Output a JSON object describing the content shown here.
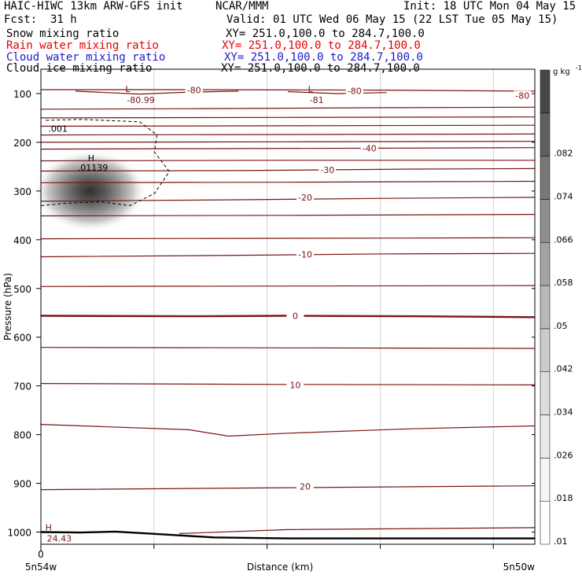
{
  "header": {
    "model": "HAIC-HIWC 13km ARW-GFS init",
    "center": "NCAR/MMM",
    "init": "Init: 18 UTC Mon 04 May 15",
    "fcst_label": "Fcst:",
    "fcst_value": "31 h",
    "valid": "Valid: 01 UTC Wed 06 May 15 (22 LST Tue 05 May 15)"
  },
  "fields": [
    {
      "name": "Snow mixing ratio",
      "xy": "XY= 251.0,100.0 to 284.7,100.0",
      "color": "#000000"
    },
    {
      "name": "Rain water mixing ratio",
      "xy": "XY= 251.0,100.0 to 284.7,100.0",
      "color": "#e60000"
    },
    {
      "name": "Cloud water mixing ratio",
      "xy": "XY= 251.0,100.0 to 284.7,100.0",
      "color": "#1a1acc"
    },
    {
      "name": "Cloud ice mixing ratio",
      "xy": "XY= 251.0,100.0 to 284.7,100.0",
      "color": "#000000"
    }
  ],
  "chart_data": {
    "type": "cross-section",
    "ylabel": "Pressure (hPa)",
    "xlabel": "Distance (km)",
    "x_ticks": [
      "0"
    ],
    "x_left_label": "5n54w",
    "x_right_label": "5n50w",
    "y_ticks": [
      100,
      200,
      300,
      400,
      500,
      600,
      700,
      800,
      900,
      1000
    ],
    "y_scale": "linear",
    "ylim": [
      1025,
      50
    ],
    "colorbar": {
      "units": "g kg",
      "units_exp": "-1",
      "labels": [
        ".01",
        ".018",
        ".026",
        ".034",
        ".042",
        ".05",
        ".058",
        ".066",
        ".074",
        ".082"
      ],
      "label_values": [
        0.01,
        0.018,
        0.026,
        0.034,
        0.042,
        0.05,
        0.058,
        0.066,
        0.074,
        0.082
      ],
      "shades": [
        "#ffffff",
        "#f5f5f5",
        "#e9e9e9",
        "#dcdcdc",
        "#cbcbcb",
        "#b9b9b9",
        "#a4a4a4",
        "#8e8e8e",
        "#777777",
        "#5f5f5f",
        "#474747"
      ]
    },
    "shaded_max": {
      "label": "H",
      "value": ".01139",
      "x_frac": 0.1,
      "pressure": 300
    },
    "cloud_contour": {
      "label": ".001",
      "style": "dashed"
    },
    "temperature_labels": [
      "-80.99",
      "-80",
      "-81",
      "-80",
      "-40",
      "-30",
      "-20",
      "-10",
      "0",
      "10",
      "20",
      "24.43"
    ],
    "isotherm_labels": [
      {
        "text": "-40",
        "x_frac": 0.665,
        "pressure": 212
      },
      {
        "text": "-30",
        "x_frac": 0.58,
        "pressure": 257
      },
      {
        "text": "-20",
        "x_frac": 0.535,
        "pressure": 313
      },
      {
        "text": "-10",
        "x_frac": 0.535,
        "pressure": 430
      },
      {
        "text": "0",
        "x_frac": 0.515,
        "pressure": 556
      },
      {
        "text": "10",
        "x_frac": 0.515,
        "pressure": 698
      },
      {
        "text": "20",
        "x_frac": 0.535,
        "pressure": 906
      }
    ],
    "extrema": [
      {
        "label": "L",
        "value": "-80.99",
        "x_frac": 0.19,
        "pressure": 100
      },
      {
        "label": "L",
        "value": "-81",
        "x_frac": 0.56,
        "pressure": 100
      },
      {
        "label": "H",
        "value": "24.43",
        "x_frac": 0.028,
        "pressure": 1000
      }
    ],
    "top_labels": [
      {
        "text": "-80",
        "x_frac": 0.31,
        "pressure": 93
      },
      {
        "text": "-80",
        "x_frac": 0.635,
        "pressure": 94
      },
      {
        "text": "-80",
        "x_frac": 0.975,
        "pressure": 104
      }
    ]
  }
}
